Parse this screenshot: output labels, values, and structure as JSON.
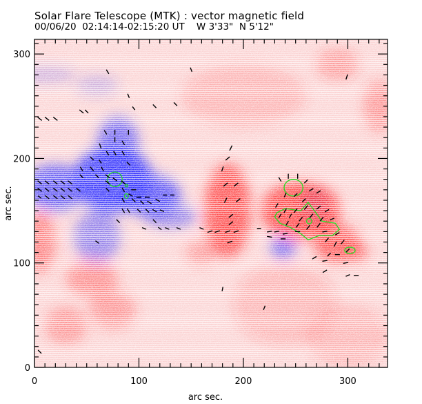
{
  "header": {
    "title": "Solar Flare Telescope (MTK) : vector magnetic field",
    "subtitle": "00/06/20  02:14:14-02:15:20 UT    W 3'33\"  N 5'12\""
  },
  "colors": {
    "positive": "#ff3030",
    "negative": "#3030ff",
    "contour": "#22dd22",
    "vector": "#000000"
  },
  "chart_data": {
    "type": "heatmap",
    "title": "Solar Flare Telescope (MTK) : vector magnetic field",
    "xlabel": "arc sec.",
    "ylabel": "arc sec.",
    "xlim": [
      0,
      338
    ],
    "ylim": [
      0,
      314
    ],
    "xticks": [
      0,
      100,
      200,
      300
    ],
    "yticks": [
      0,
      100,
      200,
      300
    ],
    "x_minor_step": 10,
    "y_minor_step": 10,
    "grid": false,
    "legend": "none",
    "regions": [
      {
        "polarity": "negative",
        "x": 75,
        "y": 180,
        "rx": 38,
        "ry": 32,
        "strength": 1.0
      },
      {
        "polarity": "negative",
        "x": 20,
        "y": 172,
        "rx": 30,
        "ry": 22,
        "strength": 0.8
      },
      {
        "polarity": "negative",
        "x": 110,
        "y": 165,
        "rx": 30,
        "ry": 20,
        "strength": 0.85
      },
      {
        "polarity": "negative",
        "x": 80,
        "y": 215,
        "rx": 20,
        "ry": 25,
        "strength": 0.7
      },
      {
        "polarity": "negative",
        "x": 60,
        "y": 125,
        "rx": 22,
        "ry": 25,
        "strength": 0.55
      },
      {
        "polarity": "negative",
        "x": 130,
        "y": 145,
        "rx": 25,
        "ry": 12,
        "strength": 0.55
      },
      {
        "polarity": "negative",
        "x": 268,
        "y": 155,
        "rx": 12,
        "ry": 15,
        "strength": 0.75
      },
      {
        "polarity": "negative",
        "x": 238,
        "y": 115,
        "rx": 12,
        "ry": 11,
        "strength": 0.7
      },
      {
        "polarity": "negative",
        "x": 10,
        "y": 280,
        "rx": 30,
        "ry": 8,
        "strength": 0.25
      },
      {
        "polarity": "negative",
        "x": 60,
        "y": 270,
        "rx": 20,
        "ry": 10,
        "strength": 0.25
      },
      {
        "polarity": "positive",
        "x": 185,
        "y": 150,
        "rx": 22,
        "ry": 45,
        "strength": 0.95
      },
      {
        "polarity": "positive",
        "x": 255,
        "y": 150,
        "rx": 38,
        "ry": 28,
        "strength": 1.0
      },
      {
        "polarity": "positive",
        "x": 290,
        "y": 118,
        "rx": 22,
        "ry": 18,
        "strength": 0.9
      },
      {
        "polarity": "positive",
        "x": 310,
        "y": 110,
        "rx": 10,
        "ry": 10,
        "strength": 0.6
      },
      {
        "polarity": "positive",
        "x": 5,
        "y": 120,
        "rx": 15,
        "ry": 30,
        "strength": 0.6
      },
      {
        "polarity": "positive",
        "x": 55,
        "y": 85,
        "rx": 25,
        "ry": 18,
        "strength": 0.5
      },
      {
        "polarity": "positive",
        "x": 30,
        "y": 40,
        "rx": 20,
        "ry": 18,
        "strength": 0.45
      },
      {
        "polarity": "positive",
        "x": 75,
        "y": 55,
        "rx": 22,
        "ry": 18,
        "strength": 0.45
      },
      {
        "polarity": "positive",
        "x": 330,
        "y": 250,
        "rx": 15,
        "ry": 25,
        "strength": 0.45
      },
      {
        "polarity": "positive",
        "x": 290,
        "y": 290,
        "rx": 20,
        "ry": 15,
        "strength": 0.4
      },
      {
        "polarity": "positive",
        "x": 200,
        "y": 260,
        "rx": 60,
        "ry": 30,
        "strength": 0.25
      },
      {
        "polarity": "positive",
        "x": 160,
        "y": 110,
        "rx": 15,
        "ry": 12,
        "strength": 0.4
      },
      {
        "polarity": "positive",
        "x": 240,
        "y": 60,
        "rx": 50,
        "ry": 40,
        "strength": 0.22
      },
      {
        "polarity": "positive",
        "x": 300,
        "y": 30,
        "rx": 40,
        "ry": 30,
        "strength": 0.25
      }
    ],
    "contours": [
      {
        "x": 77,
        "y": 180,
        "rx": 7,
        "ry": 7
      },
      {
        "x": 88,
        "y": 174,
        "rx": 1.3,
        "ry": 1.3
      },
      {
        "x": 88,
        "y": 164,
        "rx": 1.8,
        "ry": 2.2
      },
      {
        "x": 248,
        "y": 172,
        "rx": 9,
        "ry": 8
      },
      {
        "x": 263,
        "y": 140,
        "rx": 2.5,
        "ry": 2.5
      },
      {
        "x": 302,
        "y": 112,
        "rx": 5,
        "ry": 3
      }
    ],
    "vectors": [
      [
        5,
        177,
        -0.5,
        0.4
      ],
      [
        12,
        177,
        -0.5,
        0.4
      ],
      [
        20,
        177,
        -0.5,
        0.4
      ],
      [
        27,
        177,
        -0.5,
        0.4
      ],
      [
        34,
        177,
        -0.5,
        0.4
      ],
      [
        5,
        170,
        -0.5,
        0.4
      ],
      [
        12,
        170,
        -0.5,
        0.4
      ],
      [
        20,
        170,
        -0.5,
        0.4
      ],
      [
        27,
        170,
        -0.5,
        0.4
      ],
      [
        34,
        170,
        -0.5,
        0.4
      ],
      [
        42,
        170,
        -0.5,
        0.4
      ],
      [
        5,
        163,
        -0.4,
        0.3
      ],
      [
        12,
        163,
        -0.5,
        0.4
      ],
      [
        20,
        163,
        -0.5,
        0.4
      ],
      [
        27,
        163,
        -0.5,
        0.4
      ],
      [
        34,
        163,
        -0.5,
        0.4
      ],
      [
        5,
        238,
        -0.5,
        0.4
      ],
      [
        12,
        238,
        -0.5,
        0.4
      ],
      [
        20,
        238,
        -0.5,
        0.4
      ],
      [
        45,
        245,
        -0.5,
        0.4
      ],
      [
        50,
        245,
        -0.4,
        0.4
      ],
      [
        45,
        190,
        -0.3,
        0.5
      ],
      [
        55,
        190,
        -0.4,
        0.5
      ],
      [
        65,
        190,
        -0.3,
        0.5
      ],
      [
        45,
        183,
        -0.4,
        0.4
      ],
      [
        60,
        183,
        -0.4,
        0.4
      ],
      [
        70,
        183,
        -0.5,
        0.4
      ],
      [
        55,
        200,
        -0.4,
        0.4
      ],
      [
        63,
        197,
        -0.3,
        0.4
      ],
      [
        63,
        212,
        -0.2,
        0.6
      ],
      [
        70,
        205,
        -0.3,
        0.5
      ],
      [
        77,
        205,
        -0.3,
        0.5
      ],
      [
        85,
        205,
        -0.3,
        0.5
      ],
      [
        90,
        195,
        -0.4,
        0.4
      ],
      [
        68,
        225,
        -0.3,
        0.5
      ],
      [
        77,
        225,
        0,
        0.6
      ],
      [
        90,
        225,
        0,
        0.6
      ],
      [
        77,
        218,
        0,
        0.6
      ],
      [
        85,
        215,
        -0.3,
        0.5
      ],
      [
        77,
        180,
        -0.5,
        0.4
      ],
      [
        70,
        177,
        -0.5,
        0.4
      ],
      [
        85,
        177,
        -0.5,
        0.4
      ],
      [
        70,
        170,
        -0.4,
        0.4
      ],
      [
        85,
        170,
        -0.3,
        0.5
      ],
      [
        95,
        170,
        -0.6,
        0
      ],
      [
        92,
        165,
        -0.5,
        0.3
      ],
      [
        100,
        163,
        -0.6,
        0
      ],
      [
        108,
        163,
        -0.6,
        0
      ],
      [
        85,
        160,
        -0.3,
        0.5
      ],
      [
        95,
        160,
        -0.4,
        0.4
      ],
      [
        103,
        158,
        -0.4,
        0.4
      ],
      [
        110,
        158,
        -0.5,
        0.3
      ],
      [
        118,
        160,
        -0.5,
        0.3
      ],
      [
        100,
        150,
        -0.4,
        0.4
      ],
      [
        108,
        150,
        -0.4,
        0.4
      ],
      [
        115,
        150,
        -0.5,
        0.3
      ],
      [
        122,
        150,
        -0.5,
        0.2
      ],
      [
        85,
        150,
        -0.3,
        0.5
      ],
      [
        90,
        150,
        -0.3,
        0.5
      ],
      [
        80,
        140,
        -0.4,
        0.4
      ],
      [
        115,
        140,
        -0.4,
        0.4
      ],
      [
        120,
        133,
        -0.4,
        0.3
      ],
      [
        105,
        133,
        -0.5,
        0.2
      ],
      [
        127,
        133,
        -0.5,
        0.2
      ],
      [
        138,
        133,
        -0.5,
        0.2
      ],
      [
        125,
        165,
        -0.5,
        0
      ],
      [
        132,
        165,
        -0.5,
        0
      ],
      [
        70,
        283,
        -0.3,
        0.5
      ],
      [
        90,
        260,
        -0.2,
        0.5
      ],
      [
        150,
        285,
        -0.2,
        0.5
      ],
      [
        95,
        248,
        -0.3,
        0.4
      ],
      [
        135,
        252,
        -0.4,
        0.4
      ],
      [
        115,
        250,
        -0.4,
        0.4
      ],
      [
        60,
        120,
        -0.4,
        0.3
      ],
      [
        5,
        15,
        -0.4,
        0.4
      ],
      [
        180,
        190,
        0.2,
        0.6
      ],
      [
        185,
        200,
        0.5,
        0.4
      ],
      [
        188,
        210,
        0.3,
        0.6
      ],
      [
        183,
        175,
        0.5,
        0.4
      ],
      [
        193,
        175,
        0.5,
        0.4
      ],
      [
        183,
        160,
        0.3,
        0.6
      ],
      [
        195,
        160,
        0.5,
        0.4
      ],
      [
        188,
        145,
        0.5,
        0.4
      ],
      [
        188,
        138,
        0.5,
        0.4
      ],
      [
        168,
        130,
        0.6,
        0.2
      ],
      [
        175,
        130,
        0.6,
        0.2
      ],
      [
        185,
        130,
        0.6,
        0.2
      ],
      [
        193,
        130,
        0.6,
        0.2
      ],
      [
        187,
        120,
        0.6,
        0.2
      ],
      [
        160,
        133,
        0.5,
        -0.2
      ],
      [
        215,
        133,
        0.5,
        0
      ],
      [
        232,
        155,
        0.3,
        0.5
      ],
      [
        240,
        150,
        0.3,
        0.5
      ],
      [
        250,
        150,
        0.4,
        0.5
      ],
      [
        260,
        153,
        0.4,
        0.5
      ],
      [
        235,
        145,
        0.3,
        0.5
      ],
      [
        245,
        145,
        0.3,
        0.5
      ],
      [
        255,
        142,
        0.4,
        0.5
      ],
      [
        265,
        145,
        0.4,
        0.5
      ],
      [
        275,
        142,
        0.4,
        0.5
      ],
      [
        242,
        138,
        0.3,
        0.5
      ],
      [
        252,
        136,
        0.4,
        0.5
      ],
      [
        262,
        134,
        0.4,
        0.5
      ],
      [
        272,
        136,
        0.4,
        0.5
      ],
      [
        240,
        165,
        0.2,
        0.5
      ],
      [
        250,
        165,
        0.4,
        0.4
      ],
      [
        258,
        160,
        0.4,
        0.4
      ],
      [
        235,
        180,
        -0.3,
        0.5
      ],
      [
        243,
        183,
        0,
        0.6
      ],
      [
        252,
        183,
        0,
        0.6
      ],
      [
        260,
        178,
        0.4,
        0.4
      ],
      [
        265,
        170,
        0.5,
        0.3
      ],
      [
        272,
        168,
        0.5,
        0.3
      ],
      [
        272,
        153,
        0.5,
        0.4
      ],
      [
        280,
        150,
        0.5,
        0.3
      ],
      [
        285,
        142,
        0.5,
        0.2
      ],
      [
        225,
        130,
        0.6,
        0.1
      ],
      [
        232,
        130,
        0.6,
        0.1
      ],
      [
        240,
        128,
        0.6,
        0.1
      ],
      [
        252,
        130,
        0.6,
        0
      ],
      [
        225,
        125,
        0.6,
        -0.1
      ],
      [
        238,
        123,
        0.6,
        0
      ],
      [
        280,
        122,
        0.4,
        0.5
      ],
      [
        288,
        118,
        0.3,
        0.6
      ],
      [
        295,
        120,
        0.4,
        0.5
      ],
      [
        300,
        112,
        0.4,
        0.4
      ],
      [
        282,
        108,
        0.4,
        0.4
      ],
      [
        290,
        108,
        0.6,
        0
      ],
      [
        298,
        100,
        0.6,
        0.1
      ],
      [
        268,
        105,
        0.5,
        0.3
      ],
      [
        278,
        102,
        0.6,
        0.1
      ],
      [
        278,
        92,
        0.5,
        0.3
      ],
      [
        300,
        88,
        0.5,
        0.2
      ],
      [
        308,
        88,
        0.6,
        0
      ],
      [
        278,
        130,
        0.6,
        0.1
      ],
      [
        290,
        128,
        0.5,
        0.3
      ],
      [
        299,
        278,
        0.2,
        0.6
      ],
      [
        180,
        75,
        0.1,
        0.5
      ],
      [
        220,
        57,
        0.2,
        0.5
      ]
    ]
  }
}
